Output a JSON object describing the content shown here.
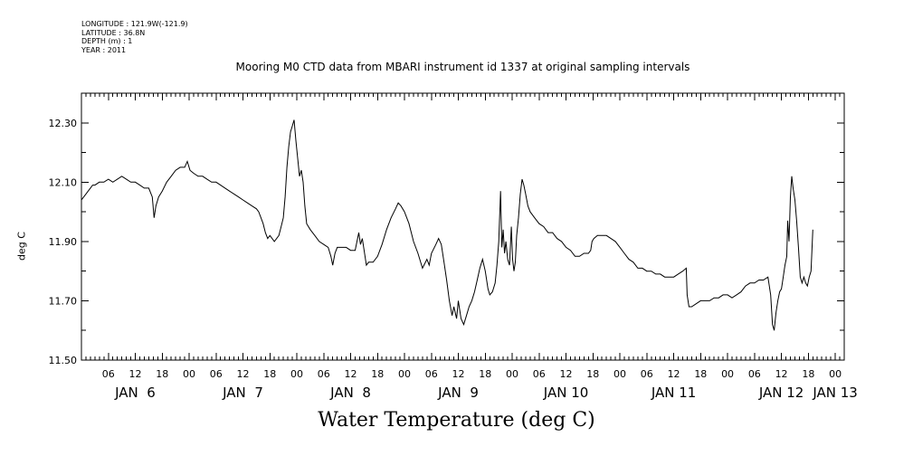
{
  "header": {
    "longitude": "LONGITUDE : 121.9W(-121.9)",
    "latitude": "LATITUDE : 36.8N",
    "depth": "DEPTH (m) : 1",
    "year": "YEAR : 2011"
  },
  "chart_data": {
    "type": "line",
    "title": "Mooring M0 CTD data from MBARI instrument id 1337 at original sampling intervals",
    "xlabel": "Water Temperature (deg C)",
    "ylabel": "deg C",
    "ylim": [
      11.5,
      12.4
    ],
    "xlim_hours": [
      0,
      170
    ],
    "y_ticks": [
      "12.30",
      "12.10",
      "11.90",
      "11.70",
      "11.50"
    ],
    "x_hour_ticks": [
      {
        "h": 6,
        "label": "06"
      },
      {
        "h": 12,
        "label": "12"
      },
      {
        "h": 18,
        "label": "18"
      },
      {
        "h": 24,
        "label": "00"
      },
      {
        "h": 30,
        "label": "06"
      },
      {
        "h": 36,
        "label": "12"
      },
      {
        "h": 42,
        "label": "18"
      },
      {
        "h": 48,
        "label": "00"
      },
      {
        "h": 54,
        "label": "06"
      },
      {
        "h": 60,
        "label": "12"
      },
      {
        "h": 66,
        "label": "18"
      },
      {
        "h": 72,
        "label": "00"
      },
      {
        "h": 78,
        "label": "06"
      },
      {
        "h": 84,
        "label": "12"
      },
      {
        "h": 90,
        "label": "18"
      },
      {
        "h": 96,
        "label": "00"
      },
      {
        "h": 102,
        "label": "06"
      },
      {
        "h": 108,
        "label": "12"
      },
      {
        "h": 114,
        "label": "18"
      },
      {
        "h": 120,
        "label": "00"
      },
      {
        "h": 126,
        "label": "06"
      },
      {
        "h": 132,
        "label": "12"
      },
      {
        "h": 138,
        "label": "18"
      },
      {
        "h": 144,
        "label": "00"
      },
      {
        "h": 150,
        "label": "06"
      },
      {
        "h": 156,
        "label": "12"
      },
      {
        "h": 162,
        "label": "18"
      },
      {
        "h": 168,
        "label": "00"
      }
    ],
    "day_labels": [
      {
        "h": 12,
        "label": "JAN  6"
      },
      {
        "h": 36,
        "label": "JAN  7"
      },
      {
        "h": 60,
        "label": "JAN  8"
      },
      {
        "h": 84,
        "label": "JAN  9"
      },
      {
        "h": 108,
        "label": "JAN 10"
      },
      {
        "h": 132,
        "label": "JAN 11"
      },
      {
        "h": 156,
        "label": "JAN 12"
      },
      {
        "h": 168,
        "label": "JAN 13"
      }
    ],
    "series": [
      {
        "color": "#000000",
        "points": [
          [
            0.0,
            12.04
          ],
          [
            0.5,
            12.05
          ],
          [
            1.0,
            12.06
          ],
          [
            1.5,
            12.07
          ],
          [
            2.0,
            12.08
          ],
          [
            2.5,
            12.09
          ],
          [
            3.0,
            12.09
          ],
          [
            4.0,
            12.1
          ],
          [
            5.0,
            12.1
          ],
          [
            6.0,
            12.11
          ],
          [
            7.0,
            12.1
          ],
          [
            8.0,
            12.11
          ],
          [
            9.0,
            12.12
          ],
          [
            10.0,
            12.11
          ],
          [
            11.0,
            12.1
          ],
          [
            12.0,
            12.1
          ],
          [
            13.0,
            12.09
          ],
          [
            14.0,
            12.08
          ],
          [
            15.0,
            12.08
          ],
          [
            15.8,
            12.05
          ],
          [
            16.2,
            11.98
          ],
          [
            16.6,
            12.02
          ],
          [
            17.2,
            12.05
          ],
          [
            18.0,
            12.07
          ],
          [
            19.0,
            12.1
          ],
          [
            20.0,
            12.12
          ],
          [
            21.0,
            12.14
          ],
          [
            22.0,
            12.15
          ],
          [
            23.0,
            12.15
          ],
          [
            23.6,
            12.17
          ],
          [
            24.2,
            12.14
          ],
          [
            25.0,
            12.13
          ],
          [
            26.0,
            12.12
          ],
          [
            27.0,
            12.12
          ],
          [
            28.0,
            12.11
          ],
          [
            29.0,
            12.1
          ],
          [
            30.0,
            12.1
          ],
          [
            31.0,
            12.09
          ],
          [
            32.0,
            12.08
          ],
          [
            33.0,
            12.07
          ],
          [
            34.0,
            12.06
          ],
          [
            35.0,
            12.05
          ],
          [
            36.0,
            12.04
          ],
          [
            37.0,
            12.03
          ],
          [
            38.0,
            12.02
          ],
          [
            39.0,
            12.01
          ],
          [
            39.5,
            12.0
          ],
          [
            40.0,
            11.98
          ],
          [
            40.5,
            11.96
          ],
          [
            41.0,
            11.93
          ],
          [
            41.5,
            11.91
          ],
          [
            42.0,
            11.92
          ],
          [
            43.0,
            11.9
          ],
          [
            44.0,
            11.92
          ],
          [
            44.5,
            11.95
          ],
          [
            45.0,
            11.98
          ],
          [
            45.4,
            12.05
          ],
          [
            45.8,
            12.15
          ],
          [
            46.2,
            12.22
          ],
          [
            46.6,
            12.27
          ],
          [
            47.0,
            12.29
          ],
          [
            47.4,
            12.31
          ],
          [
            47.8,
            12.24
          ],
          [
            48.2,
            12.18
          ],
          [
            48.6,
            12.12
          ],
          [
            49.0,
            12.14
          ],
          [
            49.4,
            12.1
          ],
          [
            49.8,
            12.02
          ],
          [
            50.2,
            11.96
          ],
          [
            51.0,
            11.94
          ],
          [
            52.0,
            11.92
          ],
          [
            53.0,
            11.9
          ],
          [
            54.0,
            11.89
          ],
          [
            55.0,
            11.88
          ],
          [
            55.6,
            11.85
          ],
          [
            56.0,
            11.82
          ],
          [
            56.5,
            11.86
          ],
          [
            57.0,
            11.88
          ],
          [
            58.0,
            11.88
          ],
          [
            59.0,
            11.88
          ],
          [
            60.0,
            11.87
          ],
          [
            61.0,
            11.87
          ],
          [
            61.4,
            11.9
          ],
          [
            61.8,
            11.93
          ],
          [
            62.2,
            11.89
          ],
          [
            62.6,
            11.91
          ],
          [
            63.0,
            11.87
          ],
          [
            63.5,
            11.82
          ],
          [
            64.0,
            11.83
          ],
          [
            65.0,
            11.83
          ],
          [
            66.0,
            11.85
          ],
          [
            67.0,
            11.89
          ],
          [
            68.0,
            11.94
          ],
          [
            69.0,
            11.98
          ],
          [
            70.0,
            12.01
          ],
          [
            70.6,
            12.03
          ],
          [
            71.2,
            12.02
          ],
          [
            72.0,
            12.0
          ],
          [
            73.0,
            11.96
          ],
          [
            74.0,
            11.9
          ],
          [
            75.0,
            11.86
          ],
          [
            76.0,
            11.81
          ],
          [
            77.0,
            11.84
          ],
          [
            77.5,
            11.82
          ],
          [
            78.0,
            11.86
          ],
          [
            79.0,
            11.89
          ],
          [
            79.6,
            11.91
          ],
          [
            80.2,
            11.89
          ],
          [
            80.8,
            11.83
          ],
          [
            81.4,
            11.77
          ],
          [
            82.0,
            11.7
          ],
          [
            82.6,
            11.65
          ],
          [
            83.0,
            11.68
          ],
          [
            83.6,
            11.64
          ],
          [
            84.0,
            11.7
          ],
          [
            84.6,
            11.64
          ],
          [
            85.2,
            11.62
          ],
          [
            85.8,
            11.65
          ],
          [
            86.4,
            11.68
          ],
          [
            87.0,
            11.7
          ],
          [
            87.6,
            11.73
          ],
          [
            88.2,
            11.77
          ],
          [
            88.8,
            11.81
          ],
          [
            89.4,
            11.84
          ],
          [
            90.0,
            11.8
          ],
          [
            90.6,
            11.74
          ],
          [
            91.0,
            11.72
          ],
          [
            91.6,
            11.73
          ],
          [
            92.2,
            11.76
          ],
          [
            92.6,
            11.82
          ],
          [
            93.0,
            11.9
          ],
          [
            93.4,
            12.07
          ],
          [
            93.7,
            11.88
          ],
          [
            94.0,
            11.94
          ],
          [
            94.3,
            11.86
          ],
          [
            94.6,
            11.9
          ],
          [
            95.0,
            11.84
          ],
          [
            95.4,
            11.82
          ],
          [
            95.8,
            11.95
          ],
          [
            96.1,
            11.84
          ],
          [
            96.4,
            11.8
          ],
          [
            96.7,
            11.83
          ],
          [
            97.0,
            11.92
          ],
          [
            97.4,
            11.98
          ],
          [
            97.8,
            12.06
          ],
          [
            98.2,
            12.11
          ],
          [
            98.6,
            12.09
          ],
          [
            99.0,
            12.06
          ],
          [
            99.5,
            12.02
          ],
          [
            100.0,
            12.0
          ],
          [
            101.0,
            11.98
          ],
          [
            102.0,
            11.96
          ],
          [
            103.0,
            11.95
          ],
          [
            104.0,
            11.93
          ],
          [
            105.0,
            11.93
          ],
          [
            106.0,
            11.91
          ],
          [
            107.0,
            11.9
          ],
          [
            108.0,
            11.88
          ],
          [
            109.0,
            11.87
          ],
          [
            110.0,
            11.85
          ],
          [
            111.0,
            11.85
          ],
          [
            112.0,
            11.86
          ],
          [
            113.0,
            11.86
          ],
          [
            113.5,
            11.87
          ],
          [
            113.8,
            11.9
          ],
          [
            114.2,
            11.91
          ],
          [
            115.0,
            11.92
          ],
          [
            116.0,
            11.92
          ],
          [
            117.0,
            11.92
          ],
          [
            118.0,
            11.91
          ],
          [
            119.0,
            11.9
          ],
          [
            120.0,
            11.88
          ],
          [
            121.0,
            11.86
          ],
          [
            122.0,
            11.84
          ],
          [
            123.0,
            11.83
          ],
          [
            124.0,
            11.81
          ],
          [
            125.0,
            11.81
          ],
          [
            126.0,
            11.8
          ],
          [
            127.0,
            11.8
          ],
          [
            128.0,
            11.79
          ],
          [
            129.0,
            11.79
          ],
          [
            130.0,
            11.78
          ],
          [
            131.0,
            11.78
          ],
          [
            132.0,
            11.78
          ],
          [
            133.0,
            11.79
          ],
          [
            134.0,
            11.8
          ],
          [
            134.8,
            11.81
          ],
          [
            135.0,
            11.72
          ],
          [
            135.4,
            11.68
          ],
          [
            136.0,
            11.68
          ],
          [
            137.0,
            11.69
          ],
          [
            138.0,
            11.7
          ],
          [
            139.0,
            11.7
          ],
          [
            140.0,
            11.7
          ],
          [
            141.0,
            11.71
          ],
          [
            142.0,
            11.71
          ],
          [
            143.0,
            11.72
          ],
          [
            144.0,
            11.72
          ],
          [
            145.0,
            11.71
          ],
          [
            146.0,
            11.72
          ],
          [
            147.0,
            11.73
          ],
          [
            148.0,
            11.75
          ],
          [
            149.0,
            11.76
          ],
          [
            150.0,
            11.76
          ],
          [
            151.0,
            11.77
          ],
          [
            152.0,
            11.77
          ],
          [
            153.0,
            11.78
          ],
          [
            153.6,
            11.72
          ],
          [
            154.0,
            11.62
          ],
          [
            154.4,
            11.6
          ],
          [
            154.8,
            11.66
          ],
          [
            155.2,
            11.7
          ],
          [
            155.6,
            11.73
          ],
          [
            156.0,
            11.74
          ],
          [
            156.4,
            11.78
          ],
          [
            156.8,
            11.82
          ],
          [
            157.2,
            11.85
          ],
          [
            157.4,
            11.97
          ],
          [
            157.7,
            11.9
          ],
          [
            158.0,
            12.05
          ],
          [
            158.3,
            12.12
          ],
          [
            158.6,
            12.08
          ],
          [
            159.0,
            12.04
          ],
          [
            159.4,
            11.97
          ],
          [
            159.8,
            11.88
          ],
          [
            160.2,
            11.78
          ],
          [
            160.6,
            11.76
          ],
          [
            161.0,
            11.78
          ],
          [
            161.4,
            11.76
          ],
          [
            161.8,
            11.75
          ],
          [
            162.2,
            11.78
          ],
          [
            162.6,
            11.8
          ],
          [
            163.0,
            11.94
          ]
        ]
      }
    ]
  }
}
